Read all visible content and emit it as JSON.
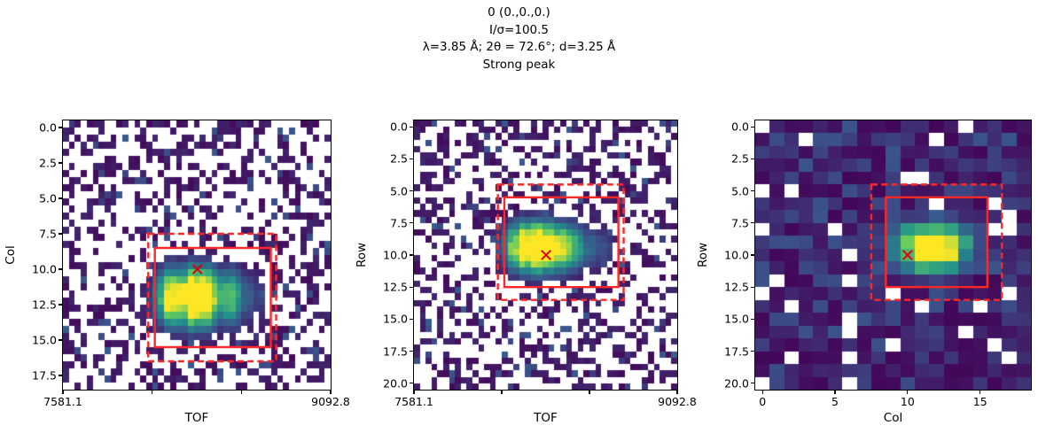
{
  "figure_title": {
    "line1": "0 (0.,0.,0.)",
    "line2": "I/σ=100.5",
    "line3": "λ=3.85 Å; 2θ = 72.6°; d=3.25 Å",
    "line4": "Strong peak"
  },
  "colors": {
    "background": "#ffffff",
    "nan_cell": "#ffffff",
    "axis": "#000000",
    "box": "#ff2626",
    "marker": "#e00000",
    "viridis_stops": [
      [
        68,
        1,
        84
      ],
      [
        59,
        82,
        139
      ],
      [
        33,
        145,
        140
      ],
      [
        94,
        201,
        98
      ],
      [
        253,
        231,
        37
      ]
    ]
  },
  "chart_data": [
    {
      "type": "heatmap",
      "xlabel": "TOF",
      "ylabel": "Col",
      "x_range": [
        7581.1,
        9092.8
      ],
      "y_range": [
        -0.5,
        18.5
      ],
      "x_ticks": {
        "values": [
          7581.1,
          8085.0,
          8588.9,
          9092.8
        ],
        "labels": [
          "7581.1",
          "",
          "",
          "9092.8"
        ]
      },
      "y_ticks": {
        "values": [
          0,
          2.5,
          5,
          7.5,
          10,
          12.5,
          15,
          17.5
        ],
        "labels": [
          "0.0",
          "2.5",
          "5.0",
          "7.5",
          "10.0",
          "12.5",
          "15.0",
          "17.5"
        ]
      },
      "grid": {
        "nx": 45,
        "ny": 19,
        "subrows": 2
      },
      "noise": {
        "dark_prob": 0.36,
        "light_prob": 0.06,
        "seed": 13
      },
      "peak": {
        "x": 8245,
        "y": 12.0,
        "sigma_x_left": 95,
        "sigma_x_right": 235,
        "sigma_y": 1.4,
        "amplitude": 1.25
      },
      "marker": {
        "x": 8340,
        "y": 10.0
      },
      "box_solid": {
        "x": [
          8100,
          8755
        ],
        "y": [
          8.5,
          15.5
        ]
      },
      "box_dashed": {
        "x": [
          8063,
          8785
        ],
        "y": [
          7.5,
          16.5
        ]
      }
    },
    {
      "type": "heatmap",
      "xlabel": "TOF",
      "ylabel": "Row",
      "x_range": [
        7581.1,
        9092.8
      ],
      "y_range": [
        -0.5,
        20.5
      ],
      "x_ticks": {
        "values": [
          7581.1,
          8085.0,
          8588.9,
          9092.8
        ],
        "labels": [
          "7581.1",
          "",
          "",
          "9092.8"
        ]
      },
      "y_ticks": {
        "values": [
          0,
          2.5,
          5,
          7.5,
          10,
          12.5,
          15,
          17.5,
          20
        ],
        "labels": [
          "0.0",
          "2.5",
          "5.0",
          "7.5",
          "10.0",
          "12.5",
          "15.0",
          "17.5",
          "20.0"
        ]
      },
      "grid": {
        "nx": 45,
        "ny": 21,
        "subrows": 2
      },
      "noise": {
        "dark_prob": 0.36,
        "light_prob": 0.06,
        "seed": 29
      },
      "peak": {
        "x": 8235,
        "y": 9.4,
        "sigma_x_left": 90,
        "sigma_x_right": 230,
        "sigma_y": 1.3,
        "amplitude": 1.3
      },
      "marker": {
        "x": 8340,
        "y": 10.0
      },
      "box_solid": {
        "x": [
          8100,
          8755
        ],
        "y": [
          5.5,
          12.5
        ]
      },
      "box_dashed": {
        "x": [
          8063,
          8785
        ],
        "y": [
          4.5,
          13.5
        ]
      }
    },
    {
      "type": "heatmap",
      "xlabel": "Col",
      "ylabel": "Row",
      "x_range": [
        -0.5,
        18.5
      ],
      "y_range": [
        -0.5,
        20.5
      ],
      "x_ticks": {
        "values": [
          0,
          5,
          10,
          15
        ],
        "labels": [
          "0",
          "5",
          "10",
          "15"
        ]
      },
      "y_ticks": {
        "values": [
          0,
          2.5,
          5,
          7.5,
          10,
          12.5,
          15,
          17.5,
          20
        ],
        "labels": [
          "0.0",
          "2.5",
          "5.0",
          "7.5",
          "10.0",
          "12.5",
          "15.0",
          "17.5",
          "20.0"
        ]
      },
      "grid": {
        "nx": 19,
        "ny": 21,
        "subrows": 1
      },
      "noise": {
        "nan_prob": 0.12,
        "base_max": 0.26,
        "seed": 7
      },
      "peak": {
        "x": 11.7,
        "y": 9.4,
        "sigma_x": 1.9,
        "sigma_y": 1.35,
        "amplitude": 1.2
      },
      "marker": {
        "x": 10,
        "y": 10
      },
      "box_solid": {
        "x": [
          8.5,
          15.5
        ],
        "y": [
          5.5,
          12.5
        ]
      },
      "box_dashed": {
        "x": [
          7.5,
          16.5
        ],
        "y": [
          4.5,
          13.5
        ]
      }
    }
  ]
}
